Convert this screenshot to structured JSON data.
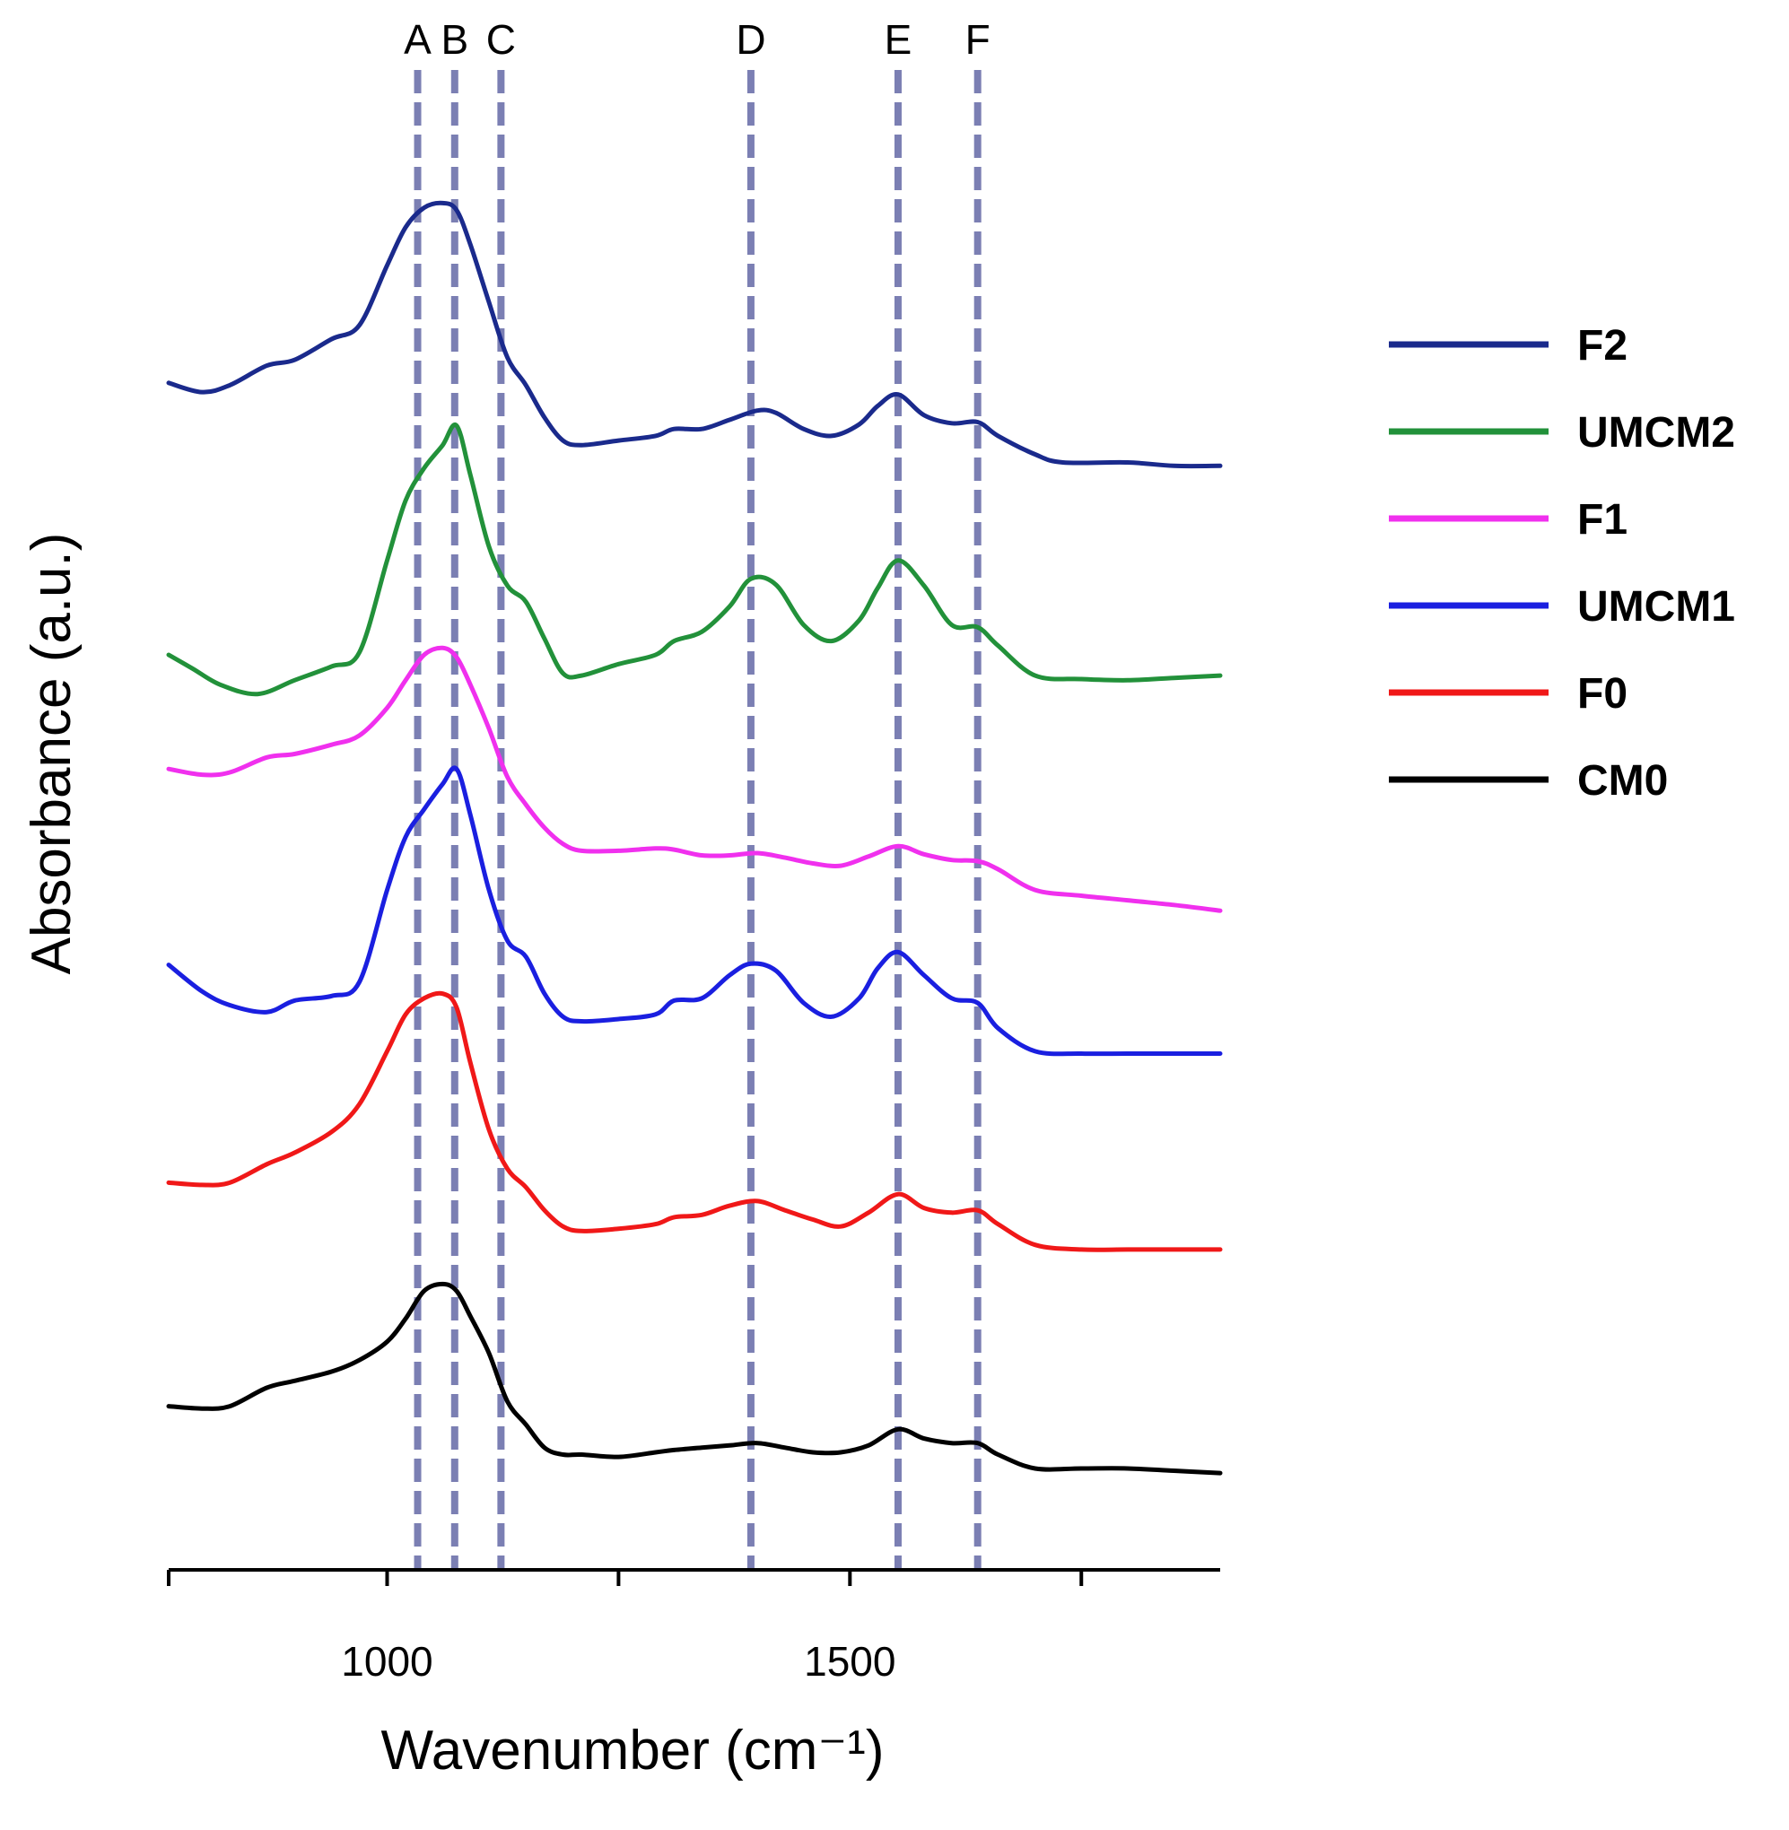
{
  "chart_data": {
    "type": "line",
    "title": "",
    "xlabel": "Wavenumber (cm⁻¹)",
    "ylabel": "Absorbance (a.u.)",
    "xlim": [
      764,
      1900
    ],
    "x_ticks": [
      1000,
      1500
    ],
    "x_minor_ticks": [
      764,
      1000,
      1250,
      1500,
      1750
    ],
    "y_ticks_shown": false,
    "grid": false,
    "legend_position": "right",
    "markers": [
      {
        "label": "A",
        "x": 1033
      },
      {
        "label": "B",
        "x": 1073
      },
      {
        "label": "C",
        "x": 1123
      },
      {
        "label": "D",
        "x": 1393
      },
      {
        "label": "E",
        "x": 1552
      },
      {
        "label": "F",
        "x": 1638
      }
    ],
    "marker_color": "#7b7fb3",
    "series": [
      {
        "name": "F2",
        "color": "#1a2a8c",
        "x": [
          764,
          800,
          830,
          870,
          900,
          940,
          970,
          1000,
          1020,
          1040,
          1060,
          1075,
          1090,
          1110,
          1130,
          1150,
          1170,
          1190,
          1210,
          1250,
          1290,
          1310,
          1340,
          1370,
          1400,
          1420,
          1450,
          1480,
          1510,
          1530,
          1552,
          1580,
          1610,
          1638,
          1660,
          1700,
          1730,
          1800,
          1850,
          1900
        ],
        "y": [
          0.73,
          0.722,
          0.728,
          0.745,
          0.75,
          0.768,
          0.78,
          0.832,
          0.865,
          0.882,
          0.886,
          0.88,
          0.85,
          0.8,
          0.752,
          0.728,
          0.7,
          0.68,
          0.676,
          0.68,
          0.684,
          0.69,
          0.69,
          0.698,
          0.706,
          0.704,
          0.69,
          0.684,
          0.694,
          0.71,
          0.72,
          0.702,
          0.695,
          0.696,
          0.684,
          0.668,
          0.661,
          0.661,
          0.658,
          0.658
        ]
      },
      {
        "name": "UMCM2",
        "color": "#22913a",
        "x": [
          764,
          790,
          820,
          860,
          900,
          940,
          970,
          1000,
          1020,
          1040,
          1060,
          1075,
          1090,
          1110,
          1130,
          1150,
          1170,
          1190,
          1210,
          1250,
          1290,
          1310,
          1340,
          1370,
          1393,
          1420,
          1450,
          1480,
          1510,
          1530,
          1552,
          1580,
          1610,
          1638,
          1660,
          1700,
          1750,
          1800,
          1850,
          1900
        ],
        "y": [
          0.494,
          0.482,
          0.468,
          0.46,
          0.472,
          0.484,
          0.496,
          0.576,
          0.628,
          0.656,
          0.676,
          0.693,
          0.65,
          0.588,
          0.554,
          0.54,
          0.508,
          0.478,
          0.476,
          0.486,
          0.494,
          0.506,
          0.514,
          0.536,
          0.56,
          0.555,
          0.52,
          0.506,
          0.524,
          0.552,
          0.576,
          0.554,
          0.52,
          0.518,
          0.502,
          0.476,
          0.473,
          0.472,
          0.474,
          0.476
        ]
      },
      {
        "name": "F1",
        "color": "#f030ee",
        "x": [
          764,
          800,
          830,
          870,
          900,
          940,
          970,
          1000,
          1020,
          1040,
          1060,
          1075,
          1090,
          1110,
          1130,
          1150,
          1170,
          1190,
          1210,
          1250,
          1290,
          1310,
          1340,
          1370,
          1400,
          1430,
          1460,
          1490,
          1520,
          1552,
          1580,
          1610,
          1638,
          1660,
          1700,
          1750,
          1800,
          1850,
          1900
        ],
        "y": [
          0.395,
          0.39,
          0.392,
          0.405,
          0.408,
          0.416,
          0.424,
          0.448,
          0.472,
          0.494,
          0.5,
          0.492,
          0.468,
          0.43,
          0.388,
          0.364,
          0.344,
          0.33,
          0.324,
          0.324,
          0.326,
          0.325,
          0.32,
          0.32,
          0.322,
          0.318,
          0.313,
          0.311,
          0.319,
          0.328,
          0.321,
          0.316,
          0.315,
          0.308,
          0.29,
          0.285,
          0.281,
          0.277,
          0.272
        ]
      },
      {
        "name": "UMCM1",
        "color": "#1a1fe0",
        "x": [
          764,
          800,
          830,
          870,
          900,
          940,
          970,
          1000,
          1020,
          1040,
          1060,
          1075,
          1090,
          1110,
          1130,
          1150,
          1170,
          1190,
          1210,
          1250,
          1290,
          1310,
          1340,
          1370,
          1393,
          1420,
          1450,
          1480,
          1510,
          1530,
          1552,
          1580,
          1610,
          1638,
          1660,
          1700,
          1750,
          1800,
          1850,
          1900
        ],
        "y": [
          0.225,
          0.202,
          0.19,
          0.184,
          0.194,
          0.198,
          0.21,
          0.29,
          0.336,
          0.36,
          0.382,
          0.395,
          0.355,
          0.29,
          0.246,
          0.232,
          0.2,
          0.18,
          0.176,
          0.178,
          0.182,
          0.194,
          0.196,
          0.216,
          0.226,
          0.22,
          0.192,
          0.18,
          0.196,
          0.222,
          0.236,
          0.216,
          0.196,
          0.192,
          0.17,
          0.15,
          0.148,
          0.148,
          0.148,
          0.148
        ]
      },
      {
        "name": "F0",
        "color": "#f01818",
        "x": [
          764,
          800,
          830,
          870,
          900,
          940,
          970,
          1000,
          1020,
          1040,
          1060,
          1075,
          1090,
          1110,
          1130,
          1150,
          1170,
          1190,
          1210,
          1250,
          1290,
          1310,
          1340,
          1370,
          1400,
          1430,
          1460,
          1490,
          1520,
          1552,
          1580,
          1610,
          1638,
          1660,
          1700,
          1750,
          1800,
          1850,
          1900
        ],
        "y": [
          0.036,
          0.034,
          0.036,
          0.052,
          0.062,
          0.08,
          0.104,
          0.15,
          0.182,
          0.196,
          0.2,
          0.188,
          0.14,
          0.082,
          0.048,
          0.032,
          0.012,
          -0.002,
          -0.006,
          -0.004,
          0.0,
          0.006,
          0.008,
          0.016,
          0.02,
          0.012,
          0.004,
          -0.002,
          0.01,
          0.026,
          0.014,
          0.01,
          0.012,
          0.0,
          -0.018,
          -0.022,
          -0.022,
          -0.022,
          -0.022
        ]
      },
      {
        "name": "CM0",
        "color": "#000000",
        "x": [
          764,
          800,
          830,
          870,
          900,
          940,
          970,
          1000,
          1020,
          1040,
          1060,
          1075,
          1090,
          1110,
          1130,
          1150,
          1170,
          1190,
          1210,
          1250,
          1290,
          1310,
          1340,
          1370,
          1400,
          1430,
          1460,
          1490,
          1520,
          1552,
          1580,
          1610,
          1638,
          1660,
          1700,
          1750,
          1800,
          1850,
          1900
        ],
        "y": [
          -0.158,
          -0.16,
          -0.158,
          -0.142,
          -0.136,
          -0.128,
          -0.118,
          -0.102,
          -0.082,
          -0.058,
          -0.052,
          -0.058,
          -0.08,
          -0.112,
          -0.154,
          -0.174,
          -0.194,
          -0.2,
          -0.2,
          -0.202,
          -0.198,
          -0.196,
          -0.194,
          -0.192,
          -0.19,
          -0.194,
          -0.198,
          -0.198,
          -0.192,
          -0.178,
          -0.186,
          -0.19,
          -0.19,
          -0.2,
          -0.212,
          -0.212,
          -0.212,
          -0.214,
          -0.216
        ]
      }
    ]
  }
}
